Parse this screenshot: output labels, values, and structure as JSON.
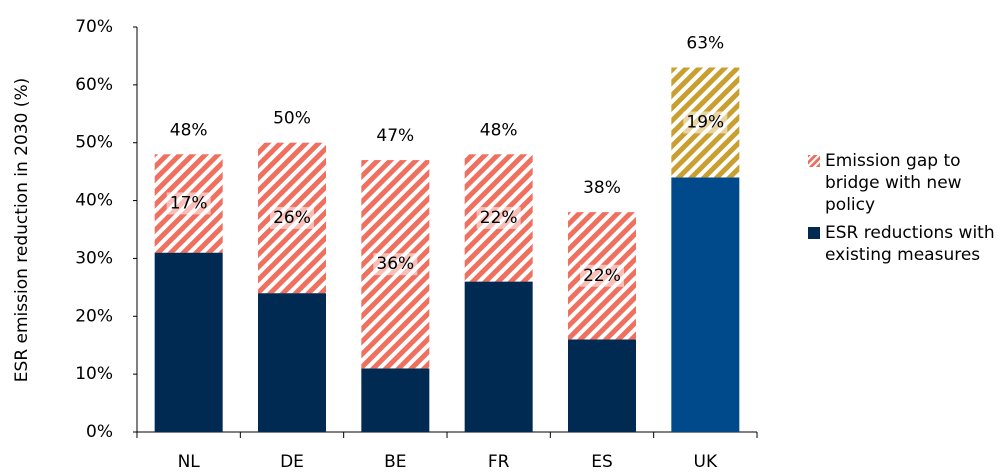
{
  "chart_data": {
    "type": "stacked_bar",
    "y_label": "ESR emission reduction in 2030 (%)",
    "categories": [
      "NL",
      "DE",
      "BE",
      "FR",
      "ES",
      "UK"
    ],
    "series": [
      {
        "name": "ESR reductions with existing measures",
        "color": "#002a52",
        "colors": [
          "#002a52",
          "#002a52",
          "#002a52",
          "#002a52",
          "#002a52",
          "#004a8c"
        ],
        "values": [
          31,
          24,
          11,
          26,
          16,
          44
        ]
      },
      {
        "name": "Emission gap to bridge with new policy",
        "color": "#f07060",
        "colors": [
          "#f07060",
          "#f07060",
          "#f07060",
          "#f07060",
          "#f07060",
          "#c9a030"
        ],
        "values": [
          17,
          26,
          36,
          22,
          22,
          19
        ],
        "value_labels": [
          "17%",
          "26%",
          "36%",
          "22%",
          "22%",
          "19%"
        ]
      }
    ],
    "totals": [
      48,
      50,
      47,
      48,
      38,
      63
    ],
    "total_labels": [
      "48%",
      "50%",
      "47%",
      "48%",
      "38%",
      "63%"
    ],
    "ylim": [
      0,
      70
    ],
    "yticks": [
      {
        "value": 0,
        "label": "0%"
      },
      {
        "value": 10,
        "label": "10%"
      },
      {
        "value": 20,
        "label": "20%"
      },
      {
        "value": 30,
        "label": "30%"
      },
      {
        "value": 40,
        "label": "40%"
      },
      {
        "value": 50,
        "label": "50%"
      },
      {
        "value": 60,
        "label": "60%"
      },
      {
        "value": 70,
        "label": "70%"
      }
    ],
    "legend_position": "right"
  }
}
